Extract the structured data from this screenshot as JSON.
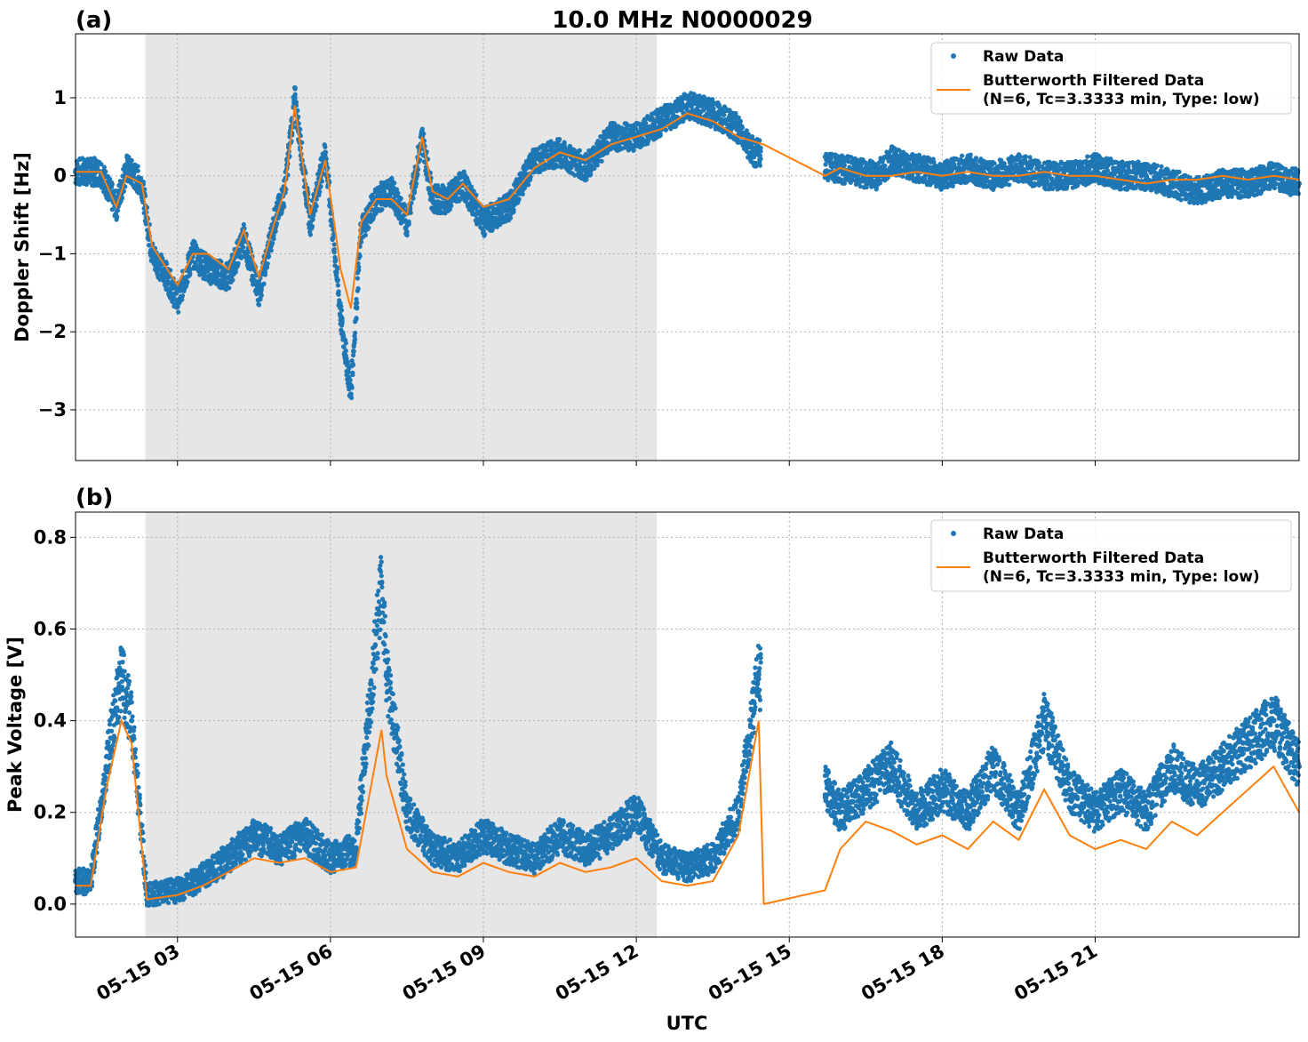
{
  "figure": {
    "title": "10.0 MHz N0000029",
    "xlabel": "UTC",
    "colors": {
      "raw": "#1f77b4",
      "filtered": "#ff7f0e",
      "shade": "#e6e6e6"
    }
  },
  "chart_data": [
    {
      "type": "scatter",
      "panel_label": "(a)",
      "ylabel": "Doppler Shift [Hz]",
      "ylim": [
        -3.65,
        1.82
      ],
      "yticks": [
        -3,
        -2,
        -1,
        0,
        1
      ],
      "ytick_labels": [
        "−3",
        "−2",
        "−1",
        "0",
        "1"
      ],
      "xlim_hours": [
        1.0,
        25.0
      ],
      "xticks_hours": [
        3,
        6,
        9,
        12,
        15,
        18,
        21
      ],
      "xtick_labels": [
        "05-15 03",
        "05-15 06",
        "05-15 09",
        "05-15 12",
        "05-15 15",
        "05-15 18",
        "05-15 21"
      ],
      "shaded_span_hours": [
        2.37,
        12.4
      ],
      "grid": true,
      "legend_position": "top-right",
      "legend": [
        "Raw Data",
        "Butterworth Filtered Data",
        "(N=6, Tc=3.3333 min, Type: low)"
      ],
      "series": [
        {
          "name": "Raw Data",
          "x_hours": [
            1.0,
            1.5,
            1.8,
            2.0,
            2.3,
            2.5,
            2.8,
            3.0,
            3.3,
            3.6,
            4.0,
            4.3,
            4.6,
            4.9,
            5.1,
            5.3,
            5.6,
            5.9,
            6.2,
            6.4,
            6.6,
            6.9,
            7.2,
            7.5,
            7.8,
            8.0,
            8.3,
            8.6,
            9.0,
            9.5,
            10.0,
            10.5,
            11.0,
            11.5,
            12.0,
            12.5,
            13.0,
            13.5,
            14.0,
            14.3,
            16.7,
            17.0,
            17.5,
            18.0,
            18.5,
            19.0,
            19.5,
            20.0,
            20.5,
            21.0,
            21.5,
            22.0,
            22.5,
            23.0,
            23.5,
            24.0,
            24.5,
            25.0
          ],
          "values": [
            0.05,
            0.05,
            -0.4,
            0.1,
            -0.1,
            -1.0,
            -1.3,
            -1.6,
            -1.0,
            -1.2,
            -1.3,
            -0.8,
            -1.5,
            -0.6,
            -0.2,
            1.0,
            -0.6,
            0.3,
            -1.8,
            -2.8,
            -0.7,
            -0.3,
            -0.2,
            -0.6,
            0.5,
            -0.3,
            -0.3,
            -0.1,
            -0.6,
            -0.4,
            0.2,
            0.3,
            0.1,
            0.5,
            0.5,
            0.7,
            0.9,
            0.8,
            0.6,
            0.3,
            0.0,
            0.2,
            0.1,
            0.0,
            0.1,
            0.0,
            0.1,
            0.0,
            0.0,
            0.1,
            0.0,
            0.0,
            -0.1,
            -0.2,
            -0.1,
            -0.1,
            0.0,
            -0.1
          ]
        },
        {
          "name": "Butterworth Filtered Data",
          "x_hours": [
            1.0,
            1.5,
            1.8,
            2.0,
            2.3,
            2.5,
            2.8,
            3.0,
            3.3,
            3.6,
            4.0,
            4.3,
            4.6,
            4.9,
            5.1,
            5.3,
            5.6,
            5.9,
            6.2,
            6.4,
            6.6,
            6.9,
            7.2,
            7.5,
            7.8,
            8.0,
            8.3,
            8.6,
            9.0,
            9.5,
            10.0,
            10.5,
            11.0,
            11.5,
            12.0,
            12.5,
            13.0,
            13.5,
            14.0,
            14.5,
            15.7,
            16.0,
            16.5,
            17.0,
            17.5,
            18.0,
            18.5,
            19.0,
            19.5,
            20.0,
            20.5,
            21.0,
            21.5,
            22.0,
            22.5,
            23.0,
            23.5,
            24.0,
            24.5,
            25.0
          ],
          "values": [
            0.05,
            0.05,
            -0.4,
            0.0,
            -0.1,
            -0.9,
            -1.2,
            -1.4,
            -1.0,
            -1.0,
            -1.2,
            -0.7,
            -1.3,
            -0.6,
            -0.2,
            0.9,
            -0.5,
            0.2,
            -1.2,
            -1.7,
            -0.6,
            -0.3,
            -0.3,
            -0.5,
            0.5,
            -0.2,
            -0.3,
            -0.1,
            -0.4,
            -0.3,
            0.1,
            0.3,
            0.2,
            0.4,
            0.5,
            0.6,
            0.8,
            0.7,
            0.5,
            0.4,
            0.0,
            0.1,
            0.0,
            0.0,
            0.05,
            0.0,
            0.05,
            0.0,
            0.0,
            0.05,
            0.0,
            0.0,
            -0.05,
            -0.1,
            -0.05,
            -0.05,
            0.0,
            -0.05,
            0.0,
            -0.05
          ]
        }
      ]
    },
    {
      "type": "scatter",
      "panel_label": "(b)",
      "ylabel": "Peak Voltage [V]",
      "ylim": [
        -0.072,
        0.855
      ],
      "yticks": [
        0.0,
        0.2,
        0.4,
        0.6,
        0.8
      ],
      "ytick_labels": [
        "0.0",
        "0.2",
        "0.4",
        "0.6",
        "0.8"
      ],
      "xlim_hours": [
        1.0,
        25.0
      ],
      "xticks_hours": [
        3,
        6,
        9,
        12,
        15,
        18,
        21
      ],
      "xtick_labels": [
        "05-15 03",
        "05-15 06",
        "05-15 09",
        "05-15 12",
        "05-15 15",
        "05-15 18",
        "05-15 21"
      ],
      "shaded_span_hours": [
        2.37,
        12.4
      ],
      "grid": true,
      "legend_position": "top-right",
      "legend": [
        "Raw Data",
        "Butterworth Filtered Data",
        "(N=6, Tc=3.3333 min, Type: low)"
      ],
      "series": [
        {
          "name": "Raw Data",
          "x_hours": [
            1.0,
            1.3,
            1.6,
            1.9,
            2.1,
            2.4,
            3.0,
            3.5,
            4.0,
            4.5,
            5.0,
            5.5,
            6.0,
            6.5,
            7.0,
            7.1,
            7.5,
            8.0,
            8.5,
            9.0,
            9.5,
            10.0,
            10.5,
            11.0,
            11.5,
            12.0,
            12.5,
            13.0,
            13.5,
            14.0,
            14.4,
            16.0,
            16.5,
            17.0,
            17.5,
            18.0,
            18.5,
            19.0,
            19.5,
            20.0,
            20.5,
            21.0,
            21.5,
            22.0,
            22.5,
            23.0,
            23.5,
            24.0,
            24.5,
            25.0
          ],
          "values": [
            0.05,
            0.05,
            0.3,
            0.5,
            0.4,
            0.02,
            0.03,
            0.06,
            0.1,
            0.15,
            0.12,
            0.15,
            0.1,
            0.12,
            0.7,
            0.5,
            0.2,
            0.12,
            0.1,
            0.15,
            0.12,
            0.1,
            0.15,
            0.12,
            0.15,
            0.2,
            0.1,
            0.08,
            0.1,
            0.2,
            0.5,
            0.2,
            0.25,
            0.3,
            0.2,
            0.25,
            0.2,
            0.3,
            0.2,
            0.4,
            0.25,
            0.2,
            0.25,
            0.2,
            0.3,
            0.25,
            0.3,
            0.35,
            0.4,
            0.3
          ]
        },
        {
          "name": "Butterworth Filtered Data",
          "x_hours": [
            1.0,
            1.3,
            1.6,
            1.9,
            2.1,
            2.4,
            3.0,
            3.5,
            4.0,
            4.5,
            5.0,
            5.5,
            6.0,
            6.5,
            7.0,
            7.1,
            7.5,
            8.0,
            8.5,
            9.0,
            9.5,
            10.0,
            10.5,
            11.0,
            11.5,
            12.0,
            12.5,
            13.0,
            13.5,
            14.0,
            14.4,
            14.5,
            15.7,
            16.0,
            16.5,
            17.0,
            17.5,
            18.0,
            18.5,
            19.0,
            19.5,
            20.0,
            20.5,
            21.0,
            21.5,
            22.0,
            22.5,
            23.0,
            23.5,
            24.0,
            24.5,
            25.0
          ],
          "values": [
            0.04,
            0.04,
            0.25,
            0.4,
            0.35,
            0.01,
            0.02,
            0.04,
            0.07,
            0.1,
            0.09,
            0.1,
            0.07,
            0.08,
            0.38,
            0.28,
            0.12,
            0.07,
            0.06,
            0.09,
            0.07,
            0.06,
            0.09,
            0.07,
            0.08,
            0.1,
            0.05,
            0.04,
            0.05,
            0.15,
            0.4,
            0.0,
            0.03,
            0.12,
            0.18,
            0.16,
            0.13,
            0.15,
            0.12,
            0.18,
            0.14,
            0.25,
            0.15,
            0.12,
            0.14,
            0.12,
            0.18,
            0.15,
            0.2,
            0.25,
            0.3,
            0.2
          ]
        }
      ]
    }
  ]
}
